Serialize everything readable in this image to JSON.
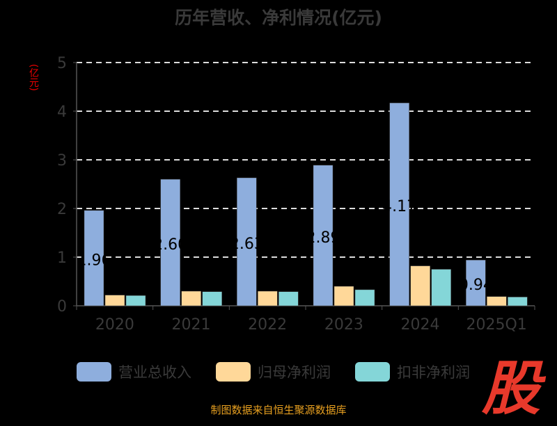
{
  "chart_data": {
    "type": "bar",
    "title": "历年营收、净利情况(亿元)",
    "ylabel": "(亿元)",
    "ylim": [
      0,
      5
    ],
    "yticks": [
      "0",
      "1",
      "2",
      "3",
      "4",
      "5"
    ],
    "categories": [
      "2020",
      "2021",
      "2022",
      "2023",
      "2024",
      "2025Q1"
    ],
    "series": [
      {
        "name": "营业总收入",
        "color": "#8eaedd",
        "values": [
          1.96,
          2.6,
          2.63,
          2.89,
          4.17,
          0.94
        ],
        "labels": [
          "1.96",
          "2.60",
          "2.63",
          "2.89",
          "4.17",
          "0.94"
        ]
      },
      {
        "name": "归母净利润",
        "color": "#ffd899",
        "values": [
          0.22,
          0.3,
          0.3,
          0.4,
          0.82,
          0.19
        ]
      },
      {
        "name": "扣非净利润",
        "color": "#84d6d8",
        "values": [
          0.21,
          0.29,
          0.29,
          0.33,
          0.75,
          0.18
        ]
      }
    ],
    "grid": true,
    "legend": "bottom"
  },
  "footer": "制图数据来自恒生聚源数据库",
  "watermark": "股"
}
